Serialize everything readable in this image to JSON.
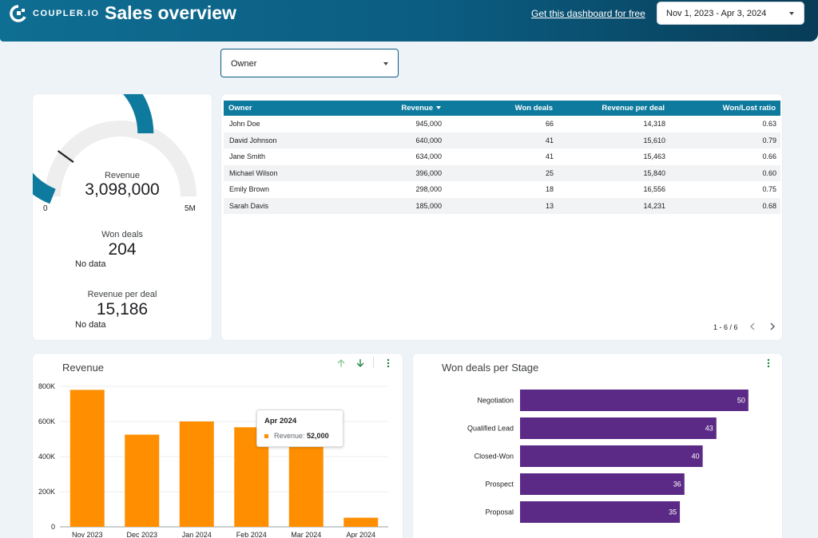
{
  "header": {
    "brand": "COUPLER.IO",
    "title": "Sales overview",
    "free_link": "Get this dashboard for free",
    "date_range": "Nov 1, 2023 - Apr 3, 2024"
  },
  "filter": {
    "owner_label": "Owner"
  },
  "kpis": {
    "gauge_label": "Revenue",
    "gauge_value": "3,098,000",
    "gauge_min": "0",
    "gauge_max": "5M",
    "gauge_fraction": 0.62,
    "won_label": "Won deals",
    "won_value": "204",
    "won_nodata": "No data",
    "rpd_label": "Revenue per deal",
    "rpd_value": "15,186",
    "rpd_nodata": "No data"
  },
  "table": {
    "headers": [
      "Owner",
      "Revenue",
      "Won deals",
      "Revenue per deal",
      "Won/Lost ratio"
    ],
    "rows": [
      [
        "John Doe",
        "945,000",
        "66",
        "14,318",
        "0.63"
      ],
      [
        "David Johnson",
        "640,000",
        "41",
        "15,610",
        "0.79"
      ],
      [
        "Jane Smith",
        "634,000",
        "41",
        "15,463",
        "0.66"
      ],
      [
        "Michael Wilson",
        "396,000",
        "25",
        "15,840",
        "0.60"
      ],
      [
        "Emily Brown",
        "298,000",
        "18",
        "16,556",
        "0.75"
      ],
      [
        "Sarah Davis",
        "185,000",
        "13",
        "14,231",
        "0.68"
      ]
    ],
    "pager": "1 - 6 / 6"
  },
  "tooltip": {
    "title": "Apr 2024",
    "label": "Revenue:",
    "value": "52,000"
  },
  "colors": {
    "brand": "#0b5c80",
    "revenue_bar": "#ff8f00",
    "stage_bar": "#5b2a86",
    "gauge": "#0e7a9e"
  },
  "icons": [
    "coupler-logo-icon",
    "sort-up-icon",
    "sort-down-icon",
    "more-vert-icon",
    "chevron-left-icon",
    "chevron-right-icon"
  ],
  "chart_data": [
    {
      "type": "bar",
      "title": "Revenue",
      "categories": [
        "Nov 2023",
        "Dec 2023",
        "Jan 2024",
        "Feb 2024",
        "Mar 2024",
        "Apr 2024"
      ],
      "values": [
        780000,
        525000,
        600000,
        567000,
        480000,
        52000
      ],
      "yticks": [
        "0",
        "200K",
        "400K",
        "600K",
        "800K"
      ],
      "ylim": [
        0,
        800000
      ],
      "grid": true
    },
    {
      "type": "bar",
      "orientation": "horizontal",
      "title": "Won deals per Stage",
      "categories": [
        "Negotiation",
        "Qualified Lead",
        "Closed-Won",
        "Prospect",
        "Proposal"
      ],
      "values": [
        50,
        43,
        40,
        36,
        35
      ],
      "xlim": [
        0,
        60
      ]
    }
  ]
}
